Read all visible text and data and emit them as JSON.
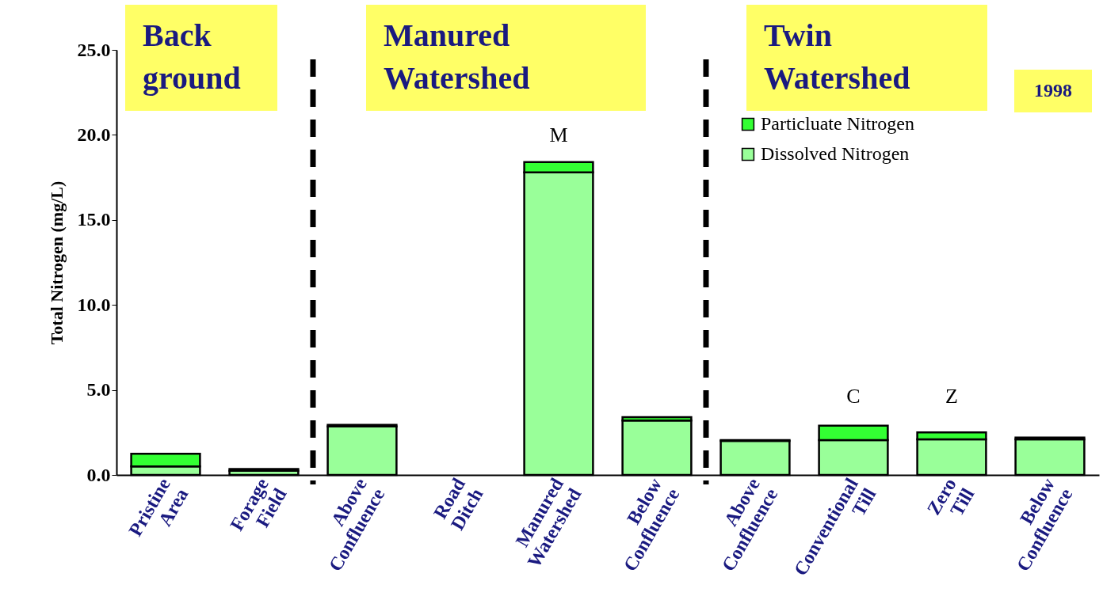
{
  "chart_data": {
    "type": "bar",
    "stacked": true,
    "ylabel": "Total Nitrogen (mg/L)",
    "categories": [
      "Pristine Area",
      "Forage Field",
      "Above Confluence",
      "Road Ditch",
      "Manured Watershed",
      "Below Confluence",
      "Above Confluence",
      "Conventional Till",
      "Zero Till",
      "Below Confluence"
    ],
    "series": [
      {
        "name": "Dissolved Nitrogen",
        "color": "#99ff99",
        "values": [
          0.5,
          0.25,
          2.85,
          0,
          17.8,
          3.2,
          2.0,
          2.05,
          2.1,
          2.1
        ]
      },
      {
        "name": "Particluate Nitrogen",
        "color": "#33ff33",
        "values": [
          0.75,
          0.1,
          0.1,
          0,
          0.6,
          0.2,
          0.05,
          0.85,
          0.4,
          0.1
        ]
      }
    ],
    "ylim": [
      0,
      25
    ],
    "yticks": [
      {
        "value": 0,
        "label": "0.0"
      },
      {
        "value": 5,
        "label": "5.0"
      },
      {
        "value": 10,
        "label": "10.0"
      },
      {
        "value": 15,
        "label": "15.0"
      },
      {
        "value": 20,
        "label": "20.0"
      },
      {
        "value": 25,
        "label": "25.0"
      }
    ],
    "grid": false,
    "legend": "top right",
    "annotations": [
      "M",
      "C",
      "Z",
      "Back ground",
      "Manured Watershed",
      "Twin Watershed",
      "1998"
    ]
  }
}
